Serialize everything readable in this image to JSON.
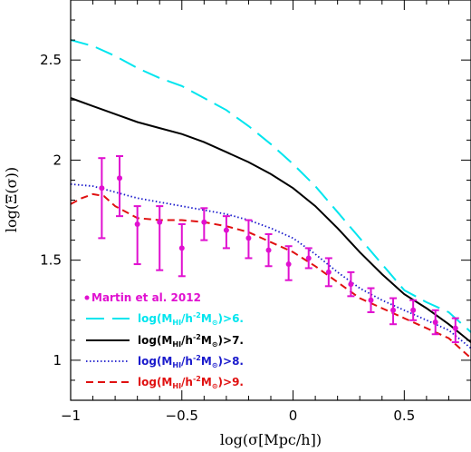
{
  "chart_data": {
    "type": "line",
    "title": "",
    "xlabel": "log(σ[Mpc/h])",
    "ylabel": "log(Ξ(σ))",
    "xlim": [
      -1.0,
      0.8
    ],
    "ylim": [
      0.8,
      2.8
    ],
    "xticks": [
      -1,
      -0.5,
      0,
      0.5
    ],
    "xtick_labels": [
      "−1",
      "−0.5",
      "0",
      "0.5"
    ],
    "yticks": [
      1,
      1.5,
      2,
      2.5
    ],
    "ytick_labels": [
      "1",
      "1.5",
      "2",
      "2.5"
    ],
    "grid": false,
    "legend_position": "bottom-left",
    "series": [
      {
        "name": "log(M_HI/h⁻²M☉)>6.",
        "legend_main": "log(M",
        "legend_sub": "HI",
        "legend_mid": "/h",
        "legend_sup": "-2",
        "legend_tail": "M",
        "legend_sun_sub": "⊙",
        "legend_end": ")>6.",
        "color": "#00e5ee",
        "dash": "long-dash",
        "x": [
          -1.0,
          -0.9,
          -0.8,
          -0.7,
          -0.6,
          -0.5,
          -0.4,
          -0.3,
          -0.2,
          -0.1,
          0.0,
          0.1,
          0.2,
          0.3,
          0.4,
          0.5,
          0.6,
          0.7,
          0.8
        ],
        "y": [
          2.6,
          2.57,
          2.52,
          2.46,
          2.41,
          2.37,
          2.31,
          2.25,
          2.17,
          2.08,
          1.98,
          1.87,
          1.74,
          1.61,
          1.48,
          1.35,
          1.29,
          1.24,
          1.14
        ]
      },
      {
        "name": "log(M_HI/h⁻²M☉)>7.",
        "legend_main": "log(M",
        "legend_sub": "HI",
        "legend_mid": "/h",
        "legend_sup": "-2",
        "legend_tail": "M",
        "legend_sun_sub": "⊙",
        "legend_end": ")>7.",
        "color": "#000000",
        "dash": "solid",
        "x": [
          -1.0,
          -0.9,
          -0.8,
          -0.7,
          -0.6,
          -0.5,
          -0.4,
          -0.3,
          -0.2,
          -0.1,
          0.0,
          0.1,
          0.2,
          0.3,
          0.4,
          0.5,
          0.6,
          0.7,
          0.8
        ],
        "y": [
          2.31,
          2.27,
          2.23,
          2.19,
          2.16,
          2.13,
          2.09,
          2.04,
          1.99,
          1.93,
          1.86,
          1.77,
          1.66,
          1.54,
          1.43,
          1.33,
          1.26,
          1.18,
          1.09
        ]
      },
      {
        "name": "log(M_HI/h⁻²M☉)>8.",
        "legend_main": "log(M",
        "legend_sub": "HI",
        "legend_mid": "/h",
        "legend_sup": "-2",
        "legend_tail": "M",
        "legend_sun_sub": "⊙",
        "legend_end": ")>8.",
        "color": "#1a1acc",
        "dash": "dotted",
        "x": [
          -1.0,
          -0.9,
          -0.8,
          -0.7,
          -0.6,
          -0.5,
          -0.4,
          -0.3,
          -0.2,
          -0.1,
          0.0,
          0.1,
          0.2,
          0.3,
          0.4,
          0.5,
          0.6,
          0.7,
          0.8
        ],
        "y": [
          1.88,
          1.87,
          1.84,
          1.81,
          1.79,
          1.77,
          1.75,
          1.73,
          1.7,
          1.66,
          1.61,
          1.53,
          1.44,
          1.36,
          1.3,
          1.25,
          1.2,
          1.15,
          1.06
        ]
      },
      {
        "name": "log(M_HI/h⁻²M☉)>9.",
        "legend_main": "log(M",
        "legend_sub": "HI",
        "legend_mid": "/h",
        "legend_sup": "-2",
        "legend_tail": "M",
        "legend_sun_sub": "⊙",
        "legend_end": ")>9.",
        "color": "#e01010",
        "dash": "short-dash",
        "x": [
          -1.0,
          -0.95,
          -0.9,
          -0.85,
          -0.8,
          -0.7,
          -0.6,
          -0.5,
          -0.4,
          -0.3,
          -0.2,
          -0.1,
          0.0,
          0.1,
          0.2,
          0.3,
          0.4,
          0.5,
          0.6,
          0.7,
          0.8
        ],
        "y": [
          1.78,
          1.81,
          1.83,
          1.82,
          1.77,
          1.71,
          1.7,
          1.7,
          1.69,
          1.67,
          1.64,
          1.59,
          1.54,
          1.47,
          1.39,
          1.31,
          1.26,
          1.21,
          1.16,
          1.11,
          1.01
        ]
      }
    ],
    "observations": {
      "name": "Martin et al. 2012",
      "color": "#e010d0",
      "x": [
        -0.86,
        -0.78,
        -0.7,
        -0.6,
        -0.5,
        -0.4,
        -0.3,
        -0.2,
        -0.11,
        -0.02,
        0.07,
        0.16,
        0.26,
        0.35,
        0.45,
        0.54,
        0.64,
        0.73
      ],
      "y": [
        1.86,
        1.91,
        1.68,
        1.69,
        1.56,
        1.69,
        1.65,
        1.61,
        1.55,
        1.48,
        1.51,
        1.44,
        1.38,
        1.3,
        1.25,
        1.25,
        1.19,
        1.16
      ],
      "err_low": [
        0.25,
        0.19,
        0.2,
        0.24,
        0.14,
        0.09,
        0.09,
        0.1,
        0.08,
        0.08,
        0.05,
        0.07,
        0.06,
        0.06,
        0.07,
        0.05,
        0.06,
        0.07
      ],
      "err_high": [
        0.15,
        0.11,
        0.09,
        0.08,
        0.12,
        0.07,
        0.07,
        0.09,
        0.08,
        0.09,
        0.05,
        0.07,
        0.06,
        0.06,
        0.06,
        0.05,
        0.06,
        0.05
      ]
    }
  }
}
